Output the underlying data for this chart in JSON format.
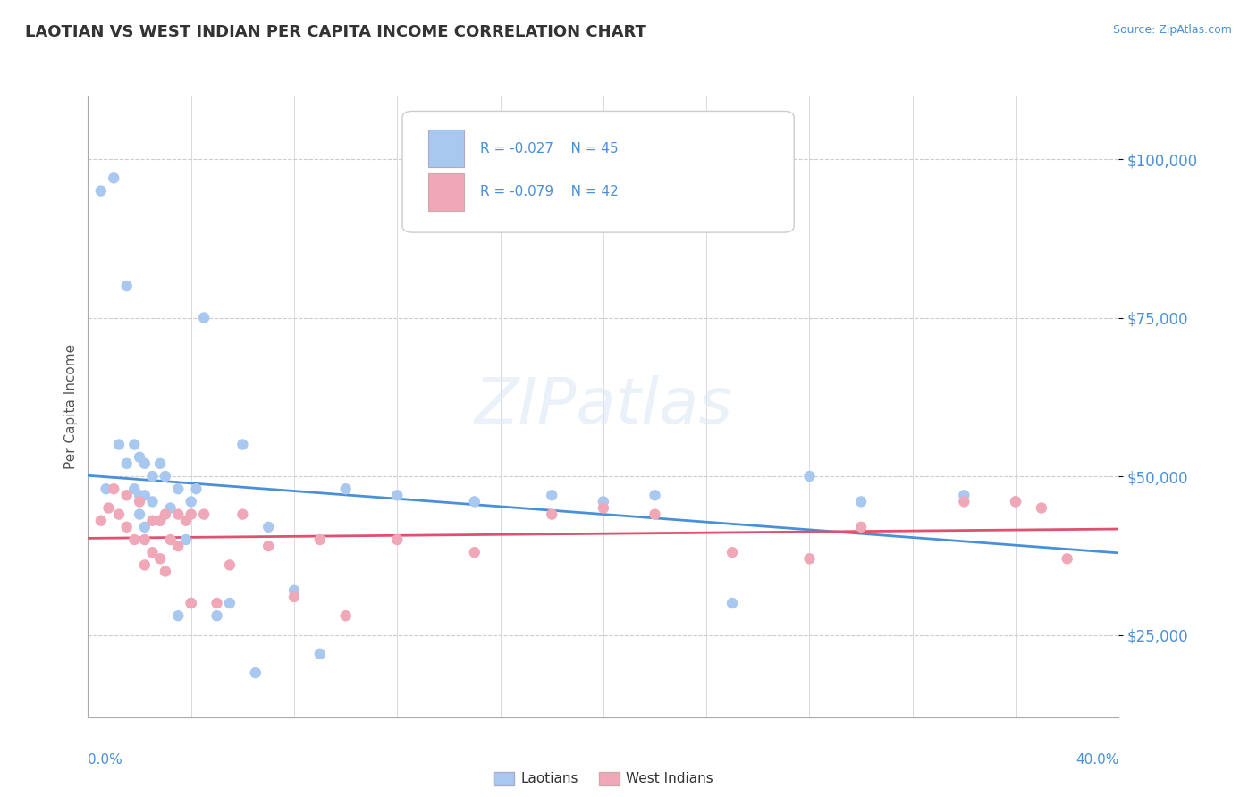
{
  "title": "LAOTIAN VS WEST INDIAN PER CAPITA INCOME CORRELATION CHART",
  "source": "Source: ZipAtlas.com",
  "ylabel": "Per Capita Income",
  "xlim": [
    0.0,
    0.4
  ],
  "ylim": [
    12000,
    110000
  ],
  "laotian_color": "#a8c8f0",
  "west_indian_color": "#f0a8b8",
  "laotian_line_color": "#4a90d9",
  "west_indian_line_color": "#e05070",
  "background_color": "#ffffff",
  "grid_color": "#cccccc",
  "laotian_x": [
    0.005,
    0.007,
    0.01,
    0.012,
    0.015,
    0.015,
    0.018,
    0.018,
    0.02,
    0.02,
    0.02,
    0.022,
    0.022,
    0.022,
    0.025,
    0.025,
    0.028,
    0.028,
    0.03,
    0.032,
    0.035,
    0.035,
    0.038,
    0.04,
    0.04,
    0.042,
    0.045,
    0.05,
    0.055,
    0.06,
    0.065,
    0.07,
    0.08,
    0.09,
    0.1,
    0.12,
    0.15,
    0.18,
    0.2,
    0.22,
    0.25,
    0.28,
    0.3,
    0.34,
    0.36
  ],
  "laotian_y": [
    95000,
    48000,
    97000,
    55000,
    80000,
    52000,
    55000,
    48000,
    53000,
    47000,
    44000,
    52000,
    47000,
    42000,
    50000,
    46000,
    52000,
    43000,
    50000,
    45000,
    48000,
    28000,
    40000,
    46000,
    30000,
    48000,
    75000,
    28000,
    30000,
    55000,
    19000,
    42000,
    32000,
    22000,
    48000,
    47000,
    46000,
    47000,
    46000,
    47000,
    30000,
    50000,
    46000,
    47000,
    46000
  ],
  "west_indian_x": [
    0.005,
    0.008,
    0.01,
    0.012,
    0.015,
    0.015,
    0.018,
    0.02,
    0.022,
    0.022,
    0.025,
    0.025,
    0.028,
    0.028,
    0.03,
    0.03,
    0.032,
    0.035,
    0.035,
    0.038,
    0.04,
    0.04,
    0.045,
    0.05,
    0.055,
    0.06,
    0.07,
    0.08,
    0.09,
    0.1,
    0.12,
    0.15,
    0.18,
    0.2,
    0.22,
    0.25,
    0.28,
    0.3,
    0.34,
    0.36,
    0.37,
    0.38
  ],
  "west_indian_y": [
    43000,
    45000,
    48000,
    44000,
    47000,
    42000,
    40000,
    46000,
    40000,
    36000,
    43000,
    38000,
    43000,
    37000,
    44000,
    35000,
    40000,
    44000,
    39000,
    43000,
    44000,
    30000,
    44000,
    30000,
    36000,
    44000,
    39000,
    31000,
    40000,
    28000,
    40000,
    38000,
    44000,
    45000,
    44000,
    38000,
    37000,
    42000,
    46000,
    46000,
    45000,
    37000
  ]
}
